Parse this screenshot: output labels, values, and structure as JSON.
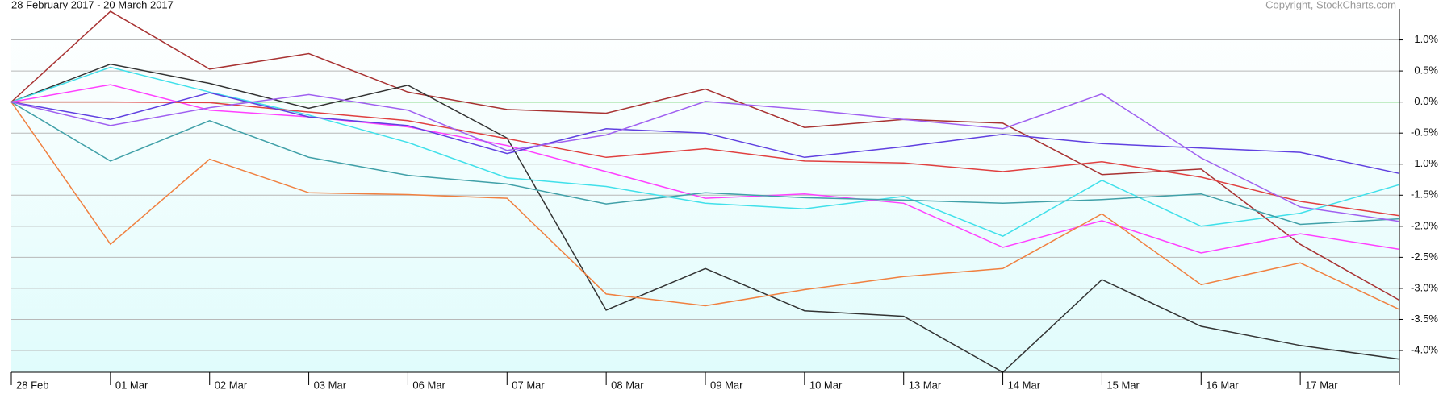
{
  "chart_data": {
    "type": "line",
    "subtitle": "28 February 2017 - 20 March 2017",
    "copyright": "Copyright, StockCharts.com",
    "categories": [
      "28 Feb",
      "01 Mar",
      "02 Mar",
      "03 Mar",
      "06 Mar",
      "07 Mar",
      "08 Mar",
      "09 Mar",
      "10 Mar",
      "13 Mar",
      "14 Mar",
      "15 Mar",
      "16 Mar",
      "17 Mar",
      null
    ],
    "ylim": [
      -4.35,
      1.5
    ],
    "yticks": [
      {
        "value": 1.0,
        "label": "1.0%"
      },
      {
        "value": 0.5,
        "label": "0.5%"
      },
      {
        "value": 0,
        "label": "0.0%"
      },
      {
        "value": -0.5,
        "label": "-0.5%"
      },
      {
        "value": -1.0,
        "label": "-1.0%"
      },
      {
        "value": -1.5,
        "label": "-1.5%"
      },
      {
        "value": -2.0,
        "label": "-2.0%"
      },
      {
        "value": -2.5,
        "label": "-2.5%"
      },
      {
        "value": -3.0,
        "label": "-3.0%"
      },
      {
        "value": -3.5,
        "label": "-3.5%"
      },
      {
        "value": -4.0,
        "label": "-4.0%"
      }
    ],
    "grid": true,
    "reference_line": {
      "value": 0,
      "color": "#33cc33"
    },
    "series": [
      {
        "color": "#a83232",
        "values": [
          0,
          1.46,
          0.53,
          0.78,
          0.16,
          -0.12,
          -0.18,
          0.21,
          -0.41,
          -0.28,
          -0.34,
          -1.17,
          -1.08,
          -2.29,
          -3.19
        ]
      },
      {
        "color": "#333333",
        "values": [
          0,
          0.61,
          0.3,
          -0.1,
          0.27,
          -0.58,
          -3.35,
          -2.68,
          -3.36,
          -3.45,
          -4.35,
          -2.86,
          -3.61,
          -3.92,
          -4.14
        ]
      },
      {
        "color": "#40e0ea",
        "values": [
          0,
          0.56,
          0.16,
          -0.21,
          -0.65,
          -1.22,
          -1.36,
          -1.63,
          -1.72,
          -1.52,
          -2.16,
          -1.26,
          -2.0,
          -1.79,
          -1.33
        ]
      },
      {
        "color": "#ff40ff",
        "values": [
          0,
          0.28,
          -0.13,
          -0.24,
          -0.4,
          -0.7,
          -1.12,
          -1.55,
          -1.48,
          -1.63,
          -2.34,
          -1.91,
          -2.43,
          -2.12,
          -2.37
        ]
      },
      {
        "color": "#f08040",
        "values": [
          0,
          -2.29,
          -0.92,
          -1.46,
          -1.49,
          -1.55,
          -3.09,
          -3.28,
          -3.02,
          -2.81,
          -2.68,
          -1.8,
          -2.94,
          -2.59,
          -3.34
        ]
      },
      {
        "color": "#40a0a8",
        "values": [
          0,
          -0.95,
          -0.3,
          -0.89,
          -1.18,
          -1.32,
          -1.64,
          -1.46,
          -1.54,
          -1.58,
          -1.63,
          -1.57,
          -1.48,
          -1.97,
          -1.88
        ]
      },
      {
        "color": "#e04040",
        "values": [
          0,
          0,
          -0.01,
          -0.16,
          -0.3,
          -0.59,
          -0.89,
          -0.75,
          -0.95,
          -0.98,
          -1.12,
          -0.96,
          -1.21,
          -1.6,
          -1.83
        ]
      },
      {
        "color": "#6040e0",
        "values": [
          0,
          -0.28,
          0.15,
          -0.24,
          -0.38,
          -0.83,
          -0.43,
          -0.5,
          -0.89,
          -0.72,
          -0.52,
          -0.67,
          -0.74,
          -0.81,
          -1.15
        ]
      },
      {
        "color": "#a060f0",
        "values": [
          0,
          -0.38,
          -0.09,
          0.12,
          -0.13,
          -0.78,
          -0.53,
          0.01,
          -0.12,
          -0.28,
          -0.43,
          0.13,
          -0.9,
          -1.69,
          -1.92
        ]
      }
    ]
  }
}
